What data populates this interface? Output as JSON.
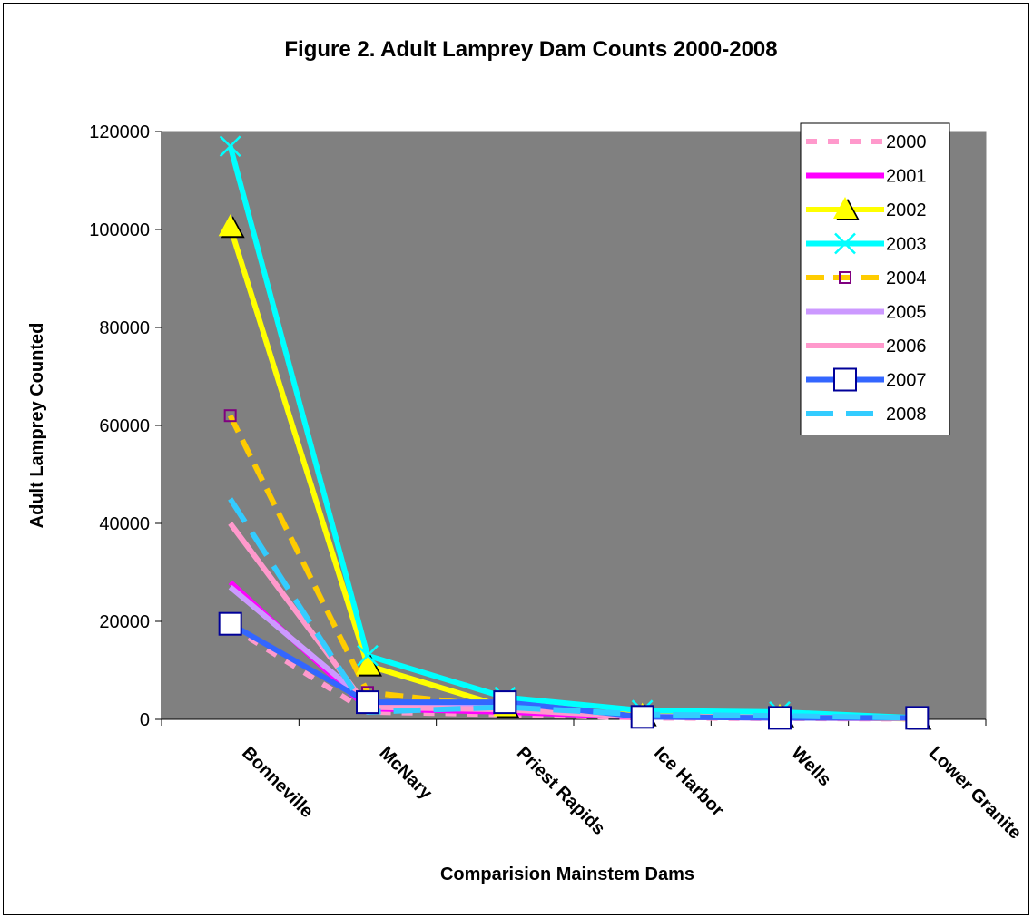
{
  "chart_data": {
    "type": "line",
    "title": "Figure 2. Adult Lamprey Dam Counts 2000-2008",
    "xlabel": "Comparision Mainstem Dams",
    "ylabel": "Adult Lamprey Counted",
    "ylim": [
      0,
      120000
    ],
    "yticks": [
      "0",
      "20000",
      "40000",
      "60000",
      "80000",
      "100000",
      "120000"
    ],
    "categories": [
      "Bonneville",
      "McNary",
      "Priest Rapids",
      "Ice Harbor",
      "Wells",
      "Lower Granite"
    ],
    "legend_position": "top-right",
    "plot_background": "#808080",
    "series": [
      {
        "name": "2000",
        "values": [
          19000,
          1500,
          1000,
          300,
          200,
          100
        ],
        "color": "#ff99cc",
        "dash": "12,12",
        "marker": "none"
      },
      {
        "name": "2001",
        "values": [
          28000,
          2200,
          1500,
          500,
          300,
          200
        ],
        "color": "#ff00ff",
        "dash": "",
        "marker": "none"
      },
      {
        "name": "2002",
        "values": [
          100500,
          11000,
          2500,
          800,
          600,
          100
        ],
        "color": "#ffff00",
        "dash": "",
        "marker": "triangle"
      },
      {
        "name": "2003",
        "values": [
          117000,
          13000,
          4500,
          1800,
          1500,
          300
        ],
        "color": "#00ffff",
        "dash": "",
        "marker": "x"
      },
      {
        "name": "2004",
        "values": [
          62000,
          5500,
          2500,
          700,
          400,
          200
        ],
        "color": "#ffcc00",
        "dash": "20,10",
        "marker": "square-purple"
      },
      {
        "name": "2005",
        "values": [
          27000,
          3500,
          2500,
          600,
          400,
          200
        ],
        "color": "#cc99ff",
        "dash": "",
        "marker": "none"
      },
      {
        "name": "2006",
        "values": [
          40000,
          2500,
          2000,
          500,
          300,
          200
        ],
        "color": "#ff99cc",
        "dash": "",
        "marker": "none"
      },
      {
        "name": "2007",
        "values": [
          19500,
          3500,
          3500,
          500,
          300,
          300
        ],
        "color": "#3366ff",
        "dash": "",
        "marker": "square"
      },
      {
        "name": "2008",
        "values": [
          45000,
          1500,
          2500,
          1000,
          700,
          300
        ],
        "color": "#33ccff",
        "dash": "30,14",
        "marker": "none"
      }
    ]
  }
}
